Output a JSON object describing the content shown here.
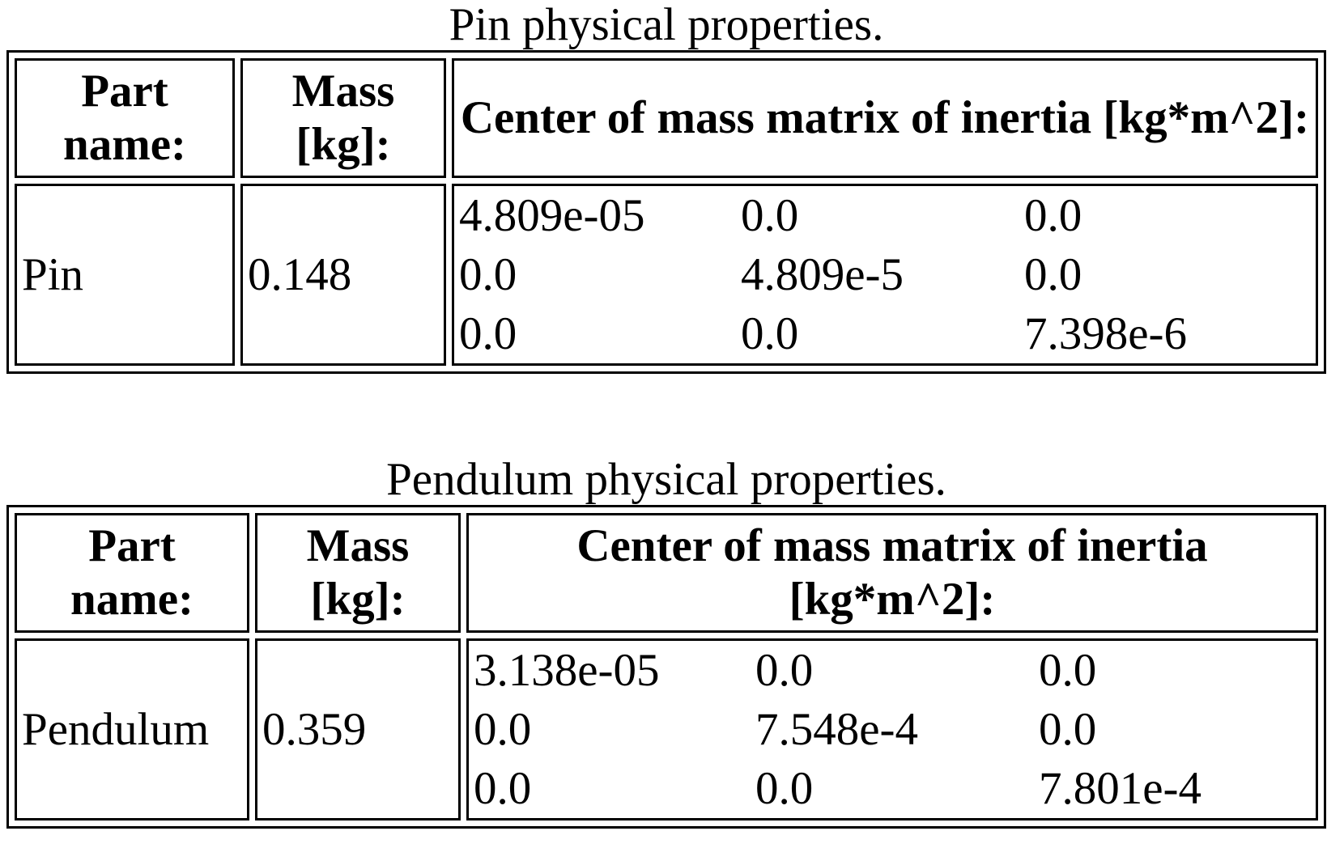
{
  "tables": [
    {
      "caption": "Pin physical properties.",
      "headers": {
        "part_name": "Part name:",
        "mass": "Mass [kg]:",
        "inertia": "Center of mass matrix of inertia [kg*m^2]:"
      },
      "part": "Pin",
      "mass": "0.148",
      "matrix": [
        [
          "4.809e-05",
          "0.0",
          "0.0"
        ],
        [
          "0.0",
          "4.809e-5",
          "0.0"
        ],
        [
          "0.0",
          "0.0",
          "7.398e-6"
        ]
      ]
    },
    {
      "caption": "Pendulum physical properties.",
      "headers": {
        "part_name": "Part name:",
        "mass": "Mass [kg]:",
        "inertia": "Center of mass matrix of inertia [kg*m^2]:"
      },
      "part": "Pendulum",
      "mass": "0.359",
      "matrix": [
        [
          "3.138e-05",
          "0.0",
          "0.0"
        ],
        [
          "0.0",
          "7.548e-4",
          "0.0"
        ],
        [
          "0.0",
          "0.0",
          "7.801e-4"
        ]
      ]
    }
  ]
}
